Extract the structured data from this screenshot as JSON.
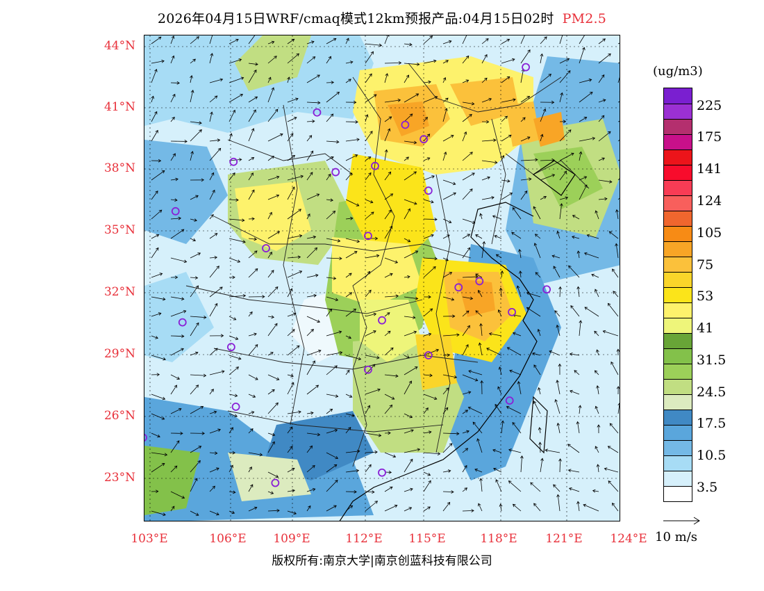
{
  "header": {
    "title": "2026年04月15日WRF/cmaq模式12km预报产品:04月15日02时",
    "species": "PM2.5"
  },
  "axes": {
    "lat_labels": [
      "44°N",
      "41°N",
      "38°N",
      "35°N",
      "32°N",
      "29°N",
      "26°N",
      "23°N"
    ],
    "lon_labels": [
      "103°E",
      "106°E",
      "109°E",
      "112°E",
      "115°E",
      "118°E",
      "121°E",
      "124°E"
    ]
  },
  "legend": {
    "unit": "(ug/m3)",
    "labels": [
      "225",
      "175",
      "141",
      "124",
      "105",
      "75",
      "53",
      "41",
      "31.5",
      "24.5",
      "17.5",
      "10.5",
      "3.5"
    ],
    "colors": [
      "#ffffff",
      "#d6f0fb",
      "#a7dcf5",
      "#74b9e6",
      "#5aa6dc",
      "#4089c4",
      "#dcebbf",
      "#c1de82",
      "#9cd059",
      "#83c14a",
      "#68a537",
      "#eef57a",
      "#fdf26c",
      "#fbe41a",
      "#fad52a",
      "#fbc13b",
      "#f8a526",
      "#f78b15",
      "#f0662e",
      "#f85f5c",
      "#f83c55",
      "#f80c2c",
      "#ec141a",
      "#c8108a",
      "#b42f6e",
      "#9b30d3",
      "#7a1fd0"
    ],
    "wind_reference": "10 m/s"
  },
  "cities": [
    {
      "lon": 119.2,
      "lat": 43.0
    },
    {
      "lon": 110.2,
      "lat": 40.8
    },
    {
      "lon": 114.0,
      "lat": 40.2
    },
    {
      "lon": 114.8,
      "lat": 39.5
    },
    {
      "lon": 106.6,
      "lat": 38.4
    },
    {
      "lon": 111.0,
      "lat": 37.9
    },
    {
      "lon": 112.7,
      "lat": 38.2
    },
    {
      "lon": 115.0,
      "lat": 37.0
    },
    {
      "lon": 104.1,
      "lat": 36.0
    },
    {
      "lon": 112.4,
      "lat": 34.8
    },
    {
      "lon": 108.0,
      "lat": 34.2
    },
    {
      "lon": 117.2,
      "lat": 32.6
    },
    {
      "lon": 116.3,
      "lat": 32.3
    },
    {
      "lon": 120.1,
      "lat": 32.2
    },
    {
      "lon": 118.6,
      "lat": 31.1
    },
    {
      "lon": 104.4,
      "lat": 30.6
    },
    {
      "lon": 113.0,
      "lat": 30.7
    },
    {
      "lon": 106.5,
      "lat": 29.4
    },
    {
      "lon": 115.0,
      "lat": 29.0
    },
    {
      "lon": 112.4,
      "lat": 28.3
    },
    {
      "lon": 106.7,
      "lat": 26.5
    },
    {
      "lon": 118.5,
      "lat": 26.8
    },
    {
      "lon": 102.7,
      "lat": 25.0
    },
    {
      "lon": 108.4,
      "lat": 22.8
    },
    {
      "lon": 113.0,
      "lat": 23.3
    }
  ],
  "copyright": "版权所有:南京大学|南京创蓝科技有限公司"
}
